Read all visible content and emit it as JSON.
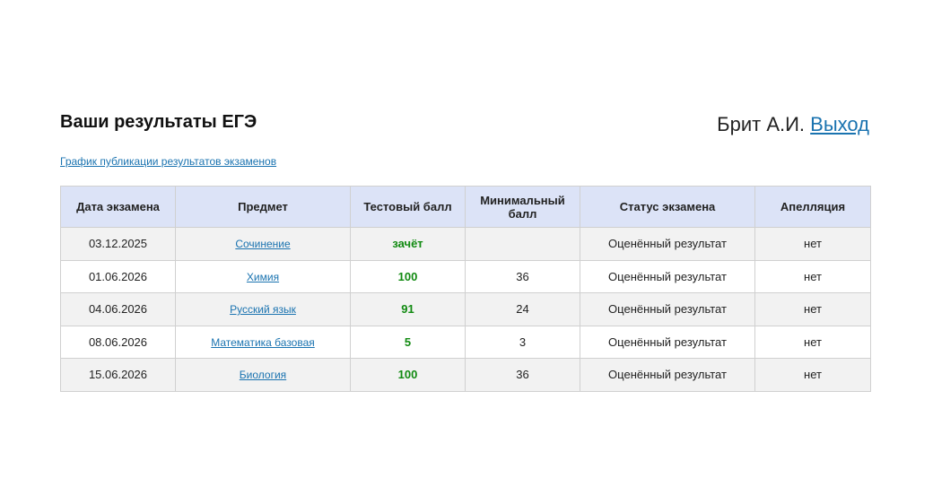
{
  "header": {
    "title": "Ваши результаты ЕГЭ",
    "user": "Брит А.И.",
    "logout": "Выход"
  },
  "schedule_link": "График публикации результатов экзаменов",
  "table": {
    "columns": [
      "Дата экзамена",
      "Предмет",
      "Тестовый балл",
      "Минимальный балл",
      "Статус экзамена",
      "Апелляция"
    ],
    "rows": [
      [
        "03.12.2025",
        "Сочинение",
        "зачёт",
        null,
        "Оценённый результат",
        "нет"
      ],
      [
        "01.06.2026",
        "Химия",
        100,
        36,
        "Оценённый результат",
        "нет"
      ],
      [
        "04.06.2026",
        "Русский язык",
        91,
        24,
        "Оценённый результат",
        "нет"
      ],
      [
        "08.06.2026",
        "Математика базовая",
        5,
        3,
        "Оценённый результат",
        "нет"
      ],
      [
        "15.06.2026",
        "Биология",
        100,
        36,
        "Оценённый результат",
        "нет"
      ]
    ]
  }
}
